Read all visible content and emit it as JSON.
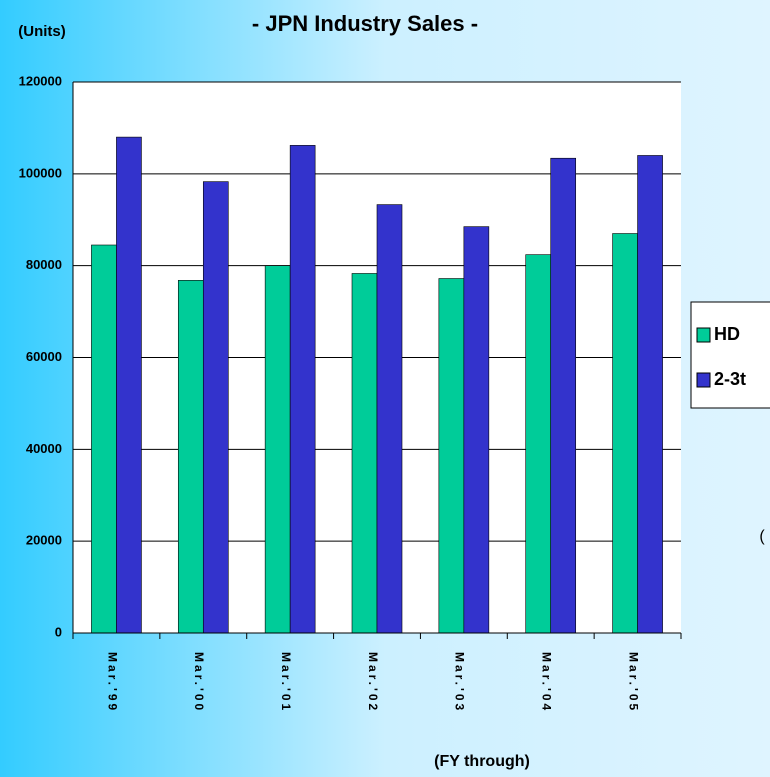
{
  "chart_data": {
    "type": "bar",
    "title": "- JPN Industry Sales -",
    "y_label": "(Units)",
    "x_label": "(FY  through)",
    "annotation": "(",
    "categories": [
      "Mar.'99",
      "Mar.'00",
      "Mar.'01",
      "Mar.'02",
      "Mar.'03",
      "Mar.'04",
      "Mar.'05"
    ],
    "series": [
      {
        "name": "HD",
        "color": "#00cc99",
        "values": [
          84500,
          76800,
          80000,
          78300,
          77200,
          82400,
          87000
        ]
      },
      {
        "name": "2-3t",
        "color": "#3333cc",
        "values": [
          108000,
          98300,
          106200,
          93300,
          88500,
          103400,
          104000
        ]
      }
    ],
    "ylim": [
      0,
      120000
    ],
    "yticks": [
      0,
      20000,
      40000,
      60000,
      80000,
      100000,
      120000
    ],
    "grid": true,
    "legend": "right"
  }
}
